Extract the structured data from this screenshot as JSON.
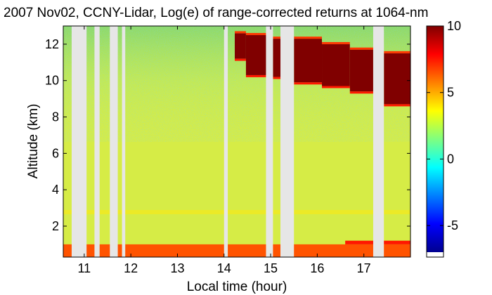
{
  "chart_data": {
    "type": "heatmap",
    "title": "2007 Nov02, CCNY-Lidar, Log(e) of range-corrected returns at 1064-nm",
    "xlabel": "Local time (hour)",
    "ylabel": "Altitude (km)",
    "xlim": [
      10.55,
      18.0
    ],
    "ylim": [
      0.3,
      13.0
    ],
    "x_ticks": [
      11,
      12,
      13,
      14,
      15,
      16,
      17
    ],
    "y_ticks": [
      2,
      4,
      6,
      8,
      10,
      12
    ],
    "colorbar": {
      "range": [
        -7,
        10
      ],
      "ticks": [
        10,
        5,
        0,
        -5
      ],
      "colormap": "jet"
    },
    "data_gaps_hours": [
      [
        10.73,
        11.05
      ],
      [
        11.22,
        11.33
      ],
      [
        11.55,
        11.72
      ],
      [
        11.81,
        11.88
      ],
      [
        14.0,
        14.08
      ],
      [
        14.9,
        15.05
      ],
      [
        15.21,
        15.5
      ],
      [
        17.2,
        17.43
      ]
    ],
    "cloud_layer": {
      "value": 10,
      "segments": [
        {
          "start": 14.23,
          "end": 14.47,
          "top_km": 12.6,
          "base_km": 11.2
        },
        {
          "start": 14.47,
          "end": 14.9,
          "top_km": 12.5,
          "base_km": 10.3
        },
        {
          "start": 15.05,
          "end": 15.21,
          "top_km": 12.3,
          "base_km": 10.2
        },
        {
          "start": 15.5,
          "end": 16.1,
          "top_km": 12.3,
          "base_km": 9.9
        },
        {
          "start": 16.1,
          "end": 16.7,
          "top_km": 12.0,
          "base_km": 9.7
        },
        {
          "start": 16.7,
          "end": 17.2,
          "top_km": 11.7,
          "base_km": 9.4
        },
        {
          "start": 17.43,
          "end": 18.0,
          "top_km": 11.5,
          "base_km": 8.7
        }
      ]
    },
    "boundary_layer": {
      "top_km": 1.0,
      "value": 6.5,
      "late_top_km": 1.2,
      "late_start": 16.6
    },
    "background_value": 2.5,
    "upper_noise_value": 0.5
  }
}
